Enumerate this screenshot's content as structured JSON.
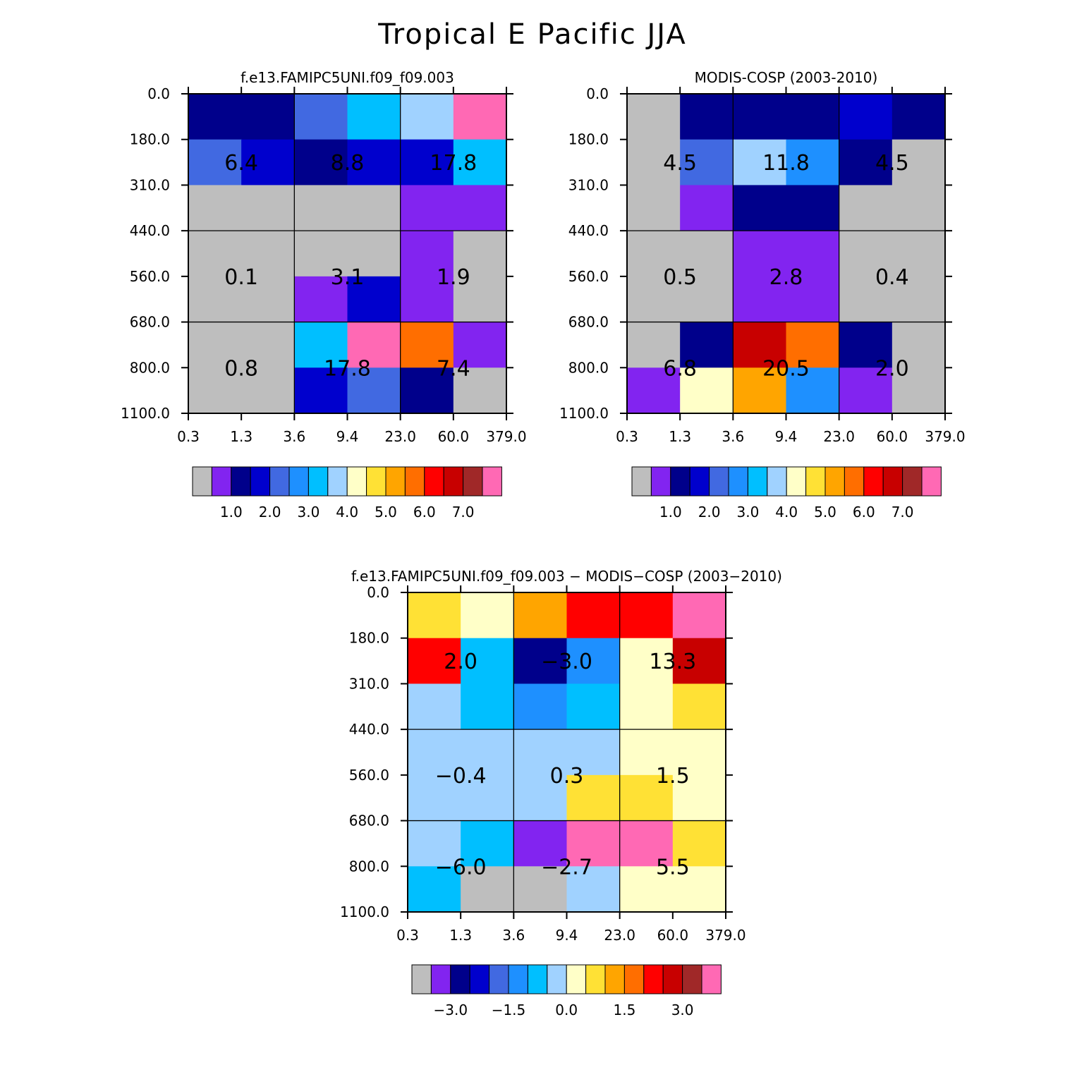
{
  "figure": {
    "title": "Tropical E Pacific JJA"
  },
  "palette": {
    "gray": "#bebebe",
    "violet": "#8224f0",
    "navy": "#00008b",
    "blue": "#0000cd",
    "royal": "#4169e1",
    "dodger": "#1e90ff",
    "sky": "#00bfff",
    "lightblue": "#a0d2ff",
    "cream": "#ffffc8",
    "yellow": "#ffe135",
    "orangeyellow": "#ffa500",
    "orange": "#ff6e00",
    "red": "#ff0000",
    "darkred": "#c80000",
    "brown": "#a02828",
    "pink": "#ff69b4"
  },
  "colorbars": [
    {
      "colors": [
        "gray",
        "violet",
        "navy",
        "blue",
        "royal",
        "dodger",
        "sky",
        "lightblue",
        "cream",
        "yellow",
        "orangeyellow",
        "orange",
        "red",
        "darkred",
        "brown",
        "pink"
      ],
      "tick_labels": [
        "1.0",
        "2.0",
        "3.0",
        "4.0",
        "5.0",
        "6.0",
        "7.0"
      ],
      "tick_boundaries": [
        2,
        4,
        6,
        8,
        10,
        12,
        14
      ]
    },
    {
      "colors": [
        "gray",
        "violet",
        "navy",
        "blue",
        "royal",
        "dodger",
        "sky",
        "lightblue",
        "cream",
        "yellow",
        "orangeyellow",
        "orange",
        "red",
        "darkred",
        "brown",
        "pink"
      ],
      "tick_labels": [
        "1.0",
        "2.0",
        "3.0",
        "4.0",
        "5.0",
        "6.0",
        "7.0"
      ],
      "tick_boundaries": [
        2,
        4,
        6,
        8,
        10,
        12,
        14
      ]
    },
    {
      "colors": [
        "gray",
        "violet",
        "navy",
        "blue",
        "royal",
        "dodger",
        "sky",
        "lightblue",
        "cream",
        "yellow",
        "orangeyellow",
        "orange",
        "red",
        "darkred",
        "brown",
        "pink"
      ],
      "tick_labels": [
        "-3.0",
        "-1.5",
        "0.0",
        "1.5",
        "3.0"
      ],
      "tick_boundaries": [
        2,
        5,
        8,
        11,
        14
      ]
    }
  ],
  "chart_data": [
    {
      "type": "heatmap",
      "title": "f.e13.FAMIPC5UNI.f09_f09.003",
      "x_tick_labels": [
        "0.3",
        "1.3",
        "3.6",
        "9.4",
        "23.0",
        "60.0",
        "379.0"
      ],
      "y_tick_labels": [
        "0.0",
        "180.0",
        "310.0",
        "440.0",
        "560.0",
        "680.0",
        "800.0",
        "1100.0"
      ],
      "cells": [
        [
          "navy",
          "navy",
          "royal",
          "sky",
          "lightblue",
          "pink"
        ],
        [
          "royal",
          "blue",
          "navy",
          "blue",
          "blue",
          "sky"
        ],
        [
          "gray",
          "gray",
          "gray",
          "gray",
          "violet",
          "violet"
        ],
        [
          "gray",
          "gray",
          "gray",
          "gray",
          "violet",
          "gray"
        ],
        [
          "gray",
          "gray",
          "violet",
          "blue",
          "violet",
          "gray"
        ],
        [
          "gray",
          "gray",
          "sky",
          "pink",
          "orange",
          "violet"
        ],
        [
          "gray",
          "gray",
          "blue",
          "royal",
          "navy",
          "gray"
        ]
      ],
      "group_values": [
        "6.4",
        "8.8",
        "17.8",
        "0.1",
        "3.1",
        "1.9",
        "0.8",
        "17.8",
        "7.4"
      ]
    },
    {
      "type": "heatmap",
      "title": "MODIS-COSP (2003-2010)",
      "x_tick_labels": [
        "0.3",
        "1.3",
        "3.6",
        "9.4",
        "23.0",
        "60.0",
        "379.0"
      ],
      "y_tick_labels": [
        "0.0",
        "180.0",
        "310.0",
        "440.0",
        "560.0",
        "680.0",
        "800.0",
        "1100.0"
      ],
      "cells": [
        [
          "gray",
          "navy",
          "navy",
          "navy",
          "blue",
          "navy"
        ],
        [
          "gray",
          "royal",
          "lightblue",
          "dodger",
          "navy",
          "gray"
        ],
        [
          "gray",
          "violet",
          "navy",
          "navy",
          "gray",
          "gray"
        ],
        [
          "gray",
          "gray",
          "violet",
          "violet",
          "gray",
          "gray"
        ],
        [
          "gray",
          "gray",
          "violet",
          "violet",
          "gray",
          "gray"
        ],
        [
          "gray",
          "navy",
          "darkred",
          "orange",
          "navy",
          "gray"
        ],
        [
          "violet",
          "cream",
          "orangeyellow",
          "dodger",
          "violet",
          "gray"
        ]
      ],
      "group_values": [
        "4.5",
        "11.8",
        "4.5",
        "0.5",
        "2.8",
        "0.4",
        "6.8",
        "20.5",
        "2.0"
      ]
    },
    {
      "type": "heatmap",
      "title": "f.e13.FAMIPC5UNI.f09_f09.003 − MODIS−COSP (2003−2010)",
      "x_tick_labels": [
        "0.3",
        "1.3",
        "3.6",
        "9.4",
        "23.0",
        "60.0",
        "379.0"
      ],
      "y_tick_labels": [
        "0.0",
        "180.0",
        "310.0",
        "440.0",
        "560.0",
        "680.0",
        "800.0",
        "1100.0"
      ],
      "cells": [
        [
          "yellow",
          "cream",
          "orangeyellow",
          "red",
          "red",
          "pink"
        ],
        [
          "red",
          "sky",
          "navy",
          "dodger",
          "cream",
          "darkred"
        ],
        [
          "lightblue",
          "sky",
          "dodger",
          "sky",
          "cream",
          "yellow"
        ],
        [
          "lightblue",
          "lightblue",
          "lightblue",
          "lightblue",
          "cream",
          "cream"
        ],
        [
          "lightblue",
          "lightblue",
          "lightblue",
          "yellow",
          "yellow",
          "cream"
        ],
        [
          "lightblue",
          "sky",
          "violet",
          "pink",
          "pink",
          "yellow"
        ],
        [
          "sky",
          "gray",
          "gray",
          "lightblue",
          "cream",
          "cream"
        ]
      ],
      "group_values": [
        "2.0",
        "−3.0",
        "13.3",
        "−0.4",
        "0.3",
        "1.5",
        "−6.0",
        "−2.7",
        "5.5"
      ]
    }
  ]
}
